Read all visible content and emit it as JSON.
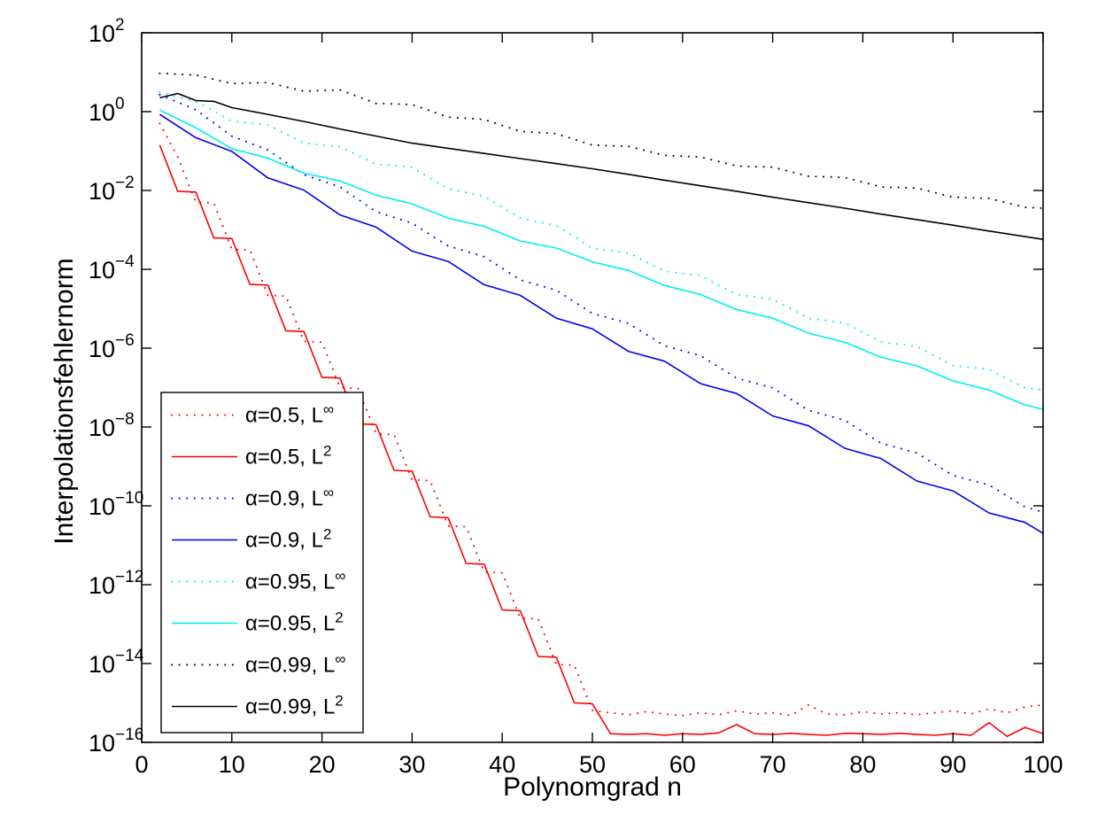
{
  "chart_data": {
    "type": "line",
    "title": "",
    "xlabel": "Polynomgrad n",
    "ylabel": "Interpolationsfehlernorm",
    "xlim": [
      0,
      100
    ],
    "y_scale": "log10",
    "ylim_exponents": [
      -16,
      2
    ],
    "grid": false,
    "legend_position": "lower-left",
    "x_ticks": [
      0,
      10,
      20,
      30,
      40,
      50,
      60,
      70,
      80,
      90,
      100
    ],
    "y_tick_exponents": [
      2,
      0,
      -2,
      -4,
      -6,
      -8,
      -10,
      -12,
      -14,
      -16
    ],
    "axis_color": "#000000",
    "background_color": "#ffffff",
    "series": [
      {
        "name": "alpha=0.5 Linf",
        "label_base": "α=0.5, L",
        "label_sup": "∞",
        "color": "#ff0000",
        "style": "dotted",
        "x": [
          2,
          4,
          6,
          8,
          10,
          12,
          14,
          16,
          18,
          20,
          22,
          24,
          26,
          28,
          30,
          32,
          34,
          36,
          38,
          40,
          42,
          44,
          46,
          48,
          50,
          52,
          54,
          56,
          58,
          60,
          62,
          64,
          66,
          68,
          70,
          72,
          74,
          76,
          78,
          80,
          82,
          84,
          86,
          88,
          90,
          92,
          94,
          96,
          98,
          100
        ],
        "log10y": [
          -0.3,
          -1.15,
          -2.3,
          -2.32,
          -3.49,
          -3.51,
          -4.66,
          -4.68,
          -5.83,
          -5.85,
          -7.0,
          -7.02,
          -8.17,
          -8.19,
          -9.34,
          -9.36,
          -10.51,
          -10.53,
          -11.68,
          -11.7,
          -12.85,
          -12.87,
          -14.02,
          -14.04,
          -15.19,
          -15.25,
          -15.3,
          -15.22,
          -15.28,
          -15.32,
          -15.25,
          -15.3,
          -15.2,
          -15.28,
          -15.25,
          -15.32,
          -15.05,
          -15.28,
          -15.3,
          -15.22,
          -15.28,
          -15.25,
          -15.3,
          -15.25,
          -15.2,
          -15.28,
          -15.15,
          -15.25,
          -15.1,
          -15.05
        ]
      },
      {
        "name": "alpha=0.5 L2",
        "label_base": "α=0.5, L",
        "label_sup": "2",
        "color": "#ff0000",
        "style": "solid",
        "x": [
          2,
          4,
          6,
          8,
          10,
          12,
          14,
          16,
          18,
          20,
          22,
          24,
          26,
          28,
          30,
          32,
          34,
          36,
          38,
          40,
          42,
          44,
          46,
          48,
          50,
          52,
          54,
          56,
          58,
          60,
          62,
          64,
          66,
          68,
          70,
          72,
          74,
          76,
          78,
          80,
          82,
          84,
          86,
          88,
          90,
          92,
          94,
          96,
          98,
          100
        ],
        "log10y": [
          -0.85,
          -2.02,
          -2.04,
          -3.2,
          -3.22,
          -4.38,
          -4.4,
          -5.56,
          -5.58,
          -6.74,
          -6.76,
          -7.92,
          -7.94,
          -9.1,
          -9.12,
          -10.28,
          -10.3,
          -11.46,
          -11.48,
          -12.64,
          -12.66,
          -13.82,
          -13.84,
          -15.0,
          -15.02,
          -15.78,
          -15.8,
          -15.78,
          -15.82,
          -15.78,
          -15.8,
          -15.76,
          -15.55,
          -15.78,
          -15.8,
          -15.77,
          -15.8,
          -15.82,
          -15.77,
          -15.78,
          -15.8,
          -15.77,
          -15.8,
          -15.82,
          -15.78,
          -15.82,
          -15.5,
          -15.85,
          -15.62,
          -15.78
        ]
      },
      {
        "name": "alpha=0.9 Linf",
        "label_base": "α=0.9, L",
        "label_sup": "∞",
        "color": "#0000ee",
        "style": "dotted",
        "x": [
          2,
          6,
          10,
          14,
          18,
          22,
          26,
          30,
          34,
          38,
          42,
          46,
          50,
          54,
          58,
          62,
          66,
          70,
          74,
          78,
          82,
          86,
          90,
          94,
          98,
          100
        ],
        "log10y": [
          0.43,
          0.05,
          -0.62,
          -0.97,
          -1.6,
          -1.91,
          -2.54,
          -2.83,
          -3.41,
          -3.68,
          -4.27,
          -4.53,
          -5.12,
          -5.37,
          -5.94,
          -6.19,
          -6.76,
          -7.01,
          -7.58,
          -7.83,
          -8.41,
          -8.66,
          -9.23,
          -9.47,
          -10.03,
          -10.16
        ]
      },
      {
        "name": "alpha=0.9 L2",
        "label_base": "α=0.9, L",
        "label_sup": "2",
        "color": "#0000ee",
        "style": "solid",
        "x": [
          2,
          6,
          10,
          14,
          18,
          22,
          26,
          30,
          34,
          38,
          42,
          46,
          50,
          54,
          58,
          62,
          66,
          70,
          74,
          78,
          82,
          86,
          90,
          94,
          98,
          100
        ],
        "log10y": [
          -0.07,
          -0.66,
          -1.01,
          -1.68,
          -1.99,
          -2.62,
          -2.93,
          -3.54,
          -3.8,
          -4.39,
          -4.66,
          -5.24,
          -5.51,
          -6.08,
          -6.33,
          -6.9,
          -7.15,
          -7.72,
          -7.97,
          -8.54,
          -8.8,
          -9.37,
          -9.62,
          -10.18,
          -10.42,
          -10.7
        ]
      },
      {
        "name": "alpha=0.95 Linf",
        "label_base": "α=0.95, L",
        "label_sup": "∞",
        "color": "#00eeee",
        "style": "dotted",
        "x": [
          2,
          6,
          10,
          14,
          18,
          22,
          26,
          30,
          34,
          38,
          42,
          46,
          50,
          54,
          58,
          62,
          66,
          70,
          74,
          78,
          82,
          86,
          90,
          94,
          98,
          100
        ],
        "log10y": [
          0.49,
          0.26,
          -0.24,
          -0.34,
          -0.8,
          -0.89,
          -1.33,
          -1.41,
          -1.96,
          -2.15,
          -2.7,
          -2.89,
          -3.47,
          -3.58,
          -4.05,
          -4.16,
          -4.64,
          -4.76,
          -5.24,
          -5.36,
          -5.84,
          -5.96,
          -6.44,
          -6.54,
          -7.01,
          -7.06
        ]
      },
      {
        "name": "alpha=0.95 L2",
        "label_base": "α=0.95, L",
        "label_sup": "2",
        "color": "#00eeee",
        "style": "solid",
        "x": [
          2,
          6,
          10,
          14,
          18,
          22,
          26,
          30,
          34,
          38,
          42,
          46,
          50,
          54,
          58,
          62,
          66,
          70,
          74,
          78,
          82,
          86,
          90,
          94,
          98,
          100
        ],
        "log10y": [
          0.04,
          -0.41,
          -0.94,
          -1.18,
          -1.56,
          -1.76,
          -2.12,
          -2.34,
          -2.7,
          -2.91,
          -3.28,
          -3.46,
          -3.81,
          -4.03,
          -4.41,
          -4.64,
          -5.02,
          -5.24,
          -5.62,
          -5.85,
          -6.23,
          -6.45,
          -6.83,
          -7.06,
          -7.44,
          -7.55
        ]
      },
      {
        "name": "alpha=0.99 Linf",
        "label_base": "α=0.99, L",
        "label_sup": "∞",
        "color": "#000000",
        "style": "dotted",
        "x": [
          2,
          6,
          10,
          14,
          18,
          22,
          26,
          30,
          34,
          38,
          42,
          46,
          50,
          54,
          58,
          62,
          66,
          70,
          74,
          78,
          82,
          86,
          90,
          94,
          98,
          100
        ],
        "log10y": [
          0.97,
          0.93,
          0.71,
          0.74,
          0.52,
          0.55,
          0.21,
          0.18,
          -0.14,
          -0.2,
          -0.5,
          -0.56,
          -0.85,
          -0.88,
          -1.11,
          -1.15,
          -1.38,
          -1.41,
          -1.64,
          -1.67,
          -1.91,
          -1.94,
          -2.17,
          -2.2,
          -2.43,
          -2.45
        ]
      },
      {
        "name": "alpha=0.99 L2",
        "label_base": "α=0.99, L",
        "label_sup": "2",
        "color": "#000000",
        "style": "solid",
        "x": [
          2,
          4,
          6,
          8,
          10,
          14,
          18,
          22,
          26,
          30,
          34,
          38,
          42,
          46,
          50,
          54,
          58,
          62,
          66,
          70,
          74,
          78,
          82,
          86,
          90,
          94,
          98,
          100
        ],
        "log10y": [
          0.35,
          0.46,
          0.28,
          0.26,
          0.1,
          -0.07,
          -0.25,
          -0.44,
          -0.62,
          -0.8,
          -0.93,
          -1.06,
          -1.19,
          -1.32,
          -1.45,
          -1.59,
          -1.74,
          -1.88,
          -2.02,
          -2.17,
          -2.31,
          -2.45,
          -2.6,
          -2.74,
          -2.88,
          -3.03,
          -3.17,
          -3.24
        ]
      }
    ]
  }
}
